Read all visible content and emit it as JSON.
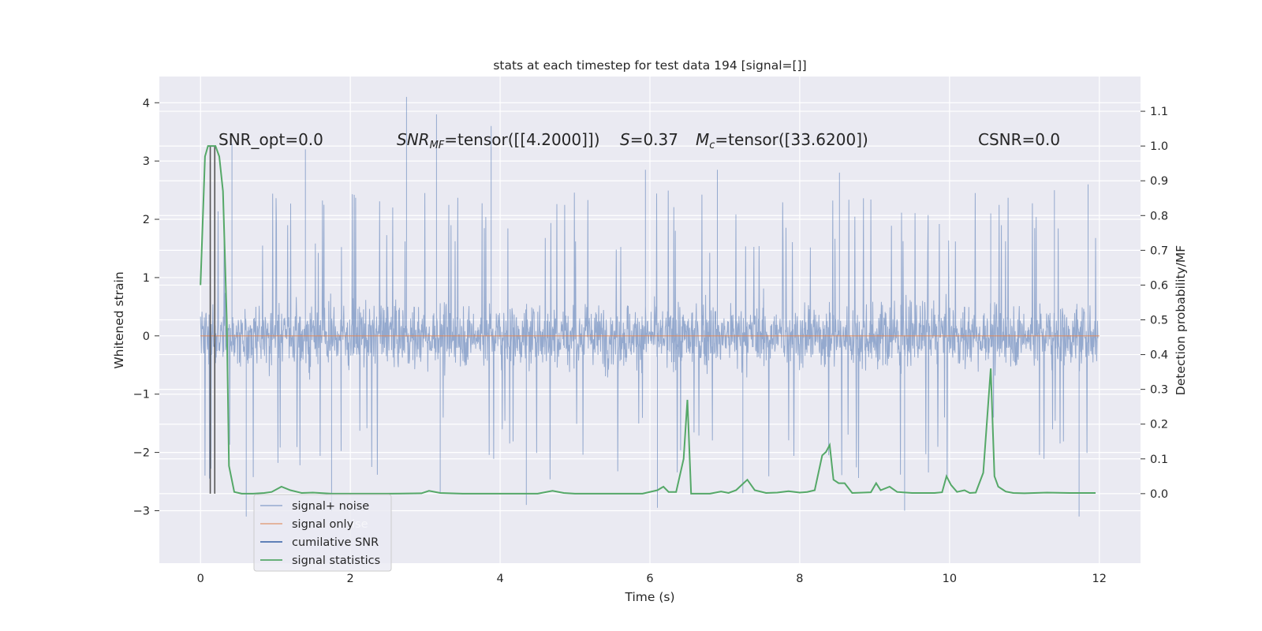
{
  "chart_data": {
    "type": "line",
    "title": "stats at each timestep for test data 194 [signal=[]]",
    "xlabel": "Time (s)",
    "ylabel": "Whitened strain",
    "ylabel_right": "Detection probability/MF",
    "xlim": [
      -0.55,
      12.55
    ],
    "ylim": [
      -3.9,
      4.45
    ],
    "ylim_right": [
      -0.2,
      1.2
    ],
    "grid": true,
    "x_ticks": [
      0,
      2,
      4,
      6,
      8,
      10,
      12
    ],
    "x_tick_labels": [
      "0",
      "2",
      "4",
      "6",
      "8",
      "10",
      "12"
    ],
    "y_ticks": [
      -3,
      -2,
      -1,
      0,
      1,
      2,
      3,
      4
    ],
    "y_tick_labels": [
      "−3",
      "−2",
      "−1",
      "0",
      "1",
      "2",
      "3",
      "4"
    ],
    "y_right_ticks": [
      0.0,
      0.1,
      0.2,
      0.3,
      0.4,
      0.5,
      0.6,
      0.7,
      0.8,
      0.9,
      1.0,
      1.1
    ],
    "y_right_tick_labels": [
      "0.0",
      "0.1",
      "0.2",
      "0.3",
      "0.4",
      "0.5",
      "0.6",
      "0.7",
      "0.8",
      "0.9",
      "1.0",
      "1.1"
    ],
    "colors": {
      "background": "#eaeaf2",
      "grid": "#ffffff",
      "noise": "#4c72b0",
      "signal_only": "#dd8452",
      "cumulative_snr": "#4c72b0",
      "statistics": "#55a868",
      "marker_lines": "#555555"
    },
    "annotations": {
      "snr_opt": "SNR_opt=0.0",
      "snr_mf_symbol": "SNR",
      "snr_mf_sub": "MF",
      "snr_mf_value": "=tensor([[4.2000]])",
      "s_symbol": "S",
      "s_value": "=0.37",
      "mc_symbol": "M",
      "mc_sub": "c",
      "mc_value": "=tensor([33.6200])",
      "csnr": "CSNR=0.0"
    },
    "legend": {
      "location": "lower left",
      "entries": [
        "signal+ noise",
        "signal only",
        "cumilative SNR",
        "signal statistics"
      ],
      "ghost_text": "ise"
    },
    "series": [
      {
        "name": "signal+ noise",
        "axis": "left",
        "x_range": [
          0,
          11.98
        ],
        "envelope_typical": [
          -1.4,
          1.5
        ],
        "spikes": [
          [
            0.42,
            3.3
          ],
          [
            0.61,
            -3.1
          ],
          [
            1.4,
            3.2
          ],
          [
            1.75,
            -3.0
          ],
          [
            2.75,
            4.1
          ],
          [
            3.15,
            3.8
          ],
          [
            3.2,
            -2.7
          ],
          [
            3.88,
            3.6
          ],
          [
            4.35,
            -2.9
          ],
          [
            5.94,
            2.85
          ],
          [
            6.1,
            -2.95
          ],
          [
            6.9,
            2.85
          ],
          [
            7.24,
            -2.7
          ],
          [
            8.53,
            2.8
          ],
          [
            9.4,
            -3.0
          ],
          [
            10.55,
            2.1
          ],
          [
            11.4,
            2.5
          ],
          [
            11.73,
            -3.1
          ],
          [
            11.85,
            2.6
          ]
        ]
      },
      {
        "name": "signal only",
        "axis": "left",
        "x": [
          0,
          12
        ],
        "y": [
          0,
          0
        ]
      },
      {
        "name": "signal statistics",
        "axis": "right",
        "x": [
          0.0,
          0.06,
          0.1,
          0.15,
          0.2,
          0.25,
          0.3,
          0.35,
          0.38,
          0.45,
          0.55,
          0.7,
          0.85,
          0.95,
          1.08,
          1.2,
          1.35,
          1.5,
          1.75,
          2.0,
          2.5,
          2.95,
          3.05,
          3.2,
          3.5,
          4.0,
          4.5,
          4.7,
          4.85,
          5.0,
          5.5,
          5.9,
          6.1,
          6.18,
          6.25,
          6.35,
          6.45,
          6.5,
          6.55,
          6.65,
          6.8,
          6.95,
          7.05,
          7.15,
          7.25,
          7.3,
          7.4,
          7.55,
          7.7,
          7.85,
          8.0,
          8.1,
          8.2,
          8.3,
          8.35,
          8.4,
          8.45,
          8.52,
          8.6,
          8.7,
          8.85,
          8.95,
          9.02,
          9.08,
          9.2,
          9.3,
          9.5,
          9.8,
          9.9,
          9.96,
          10.02,
          10.1,
          10.2,
          10.27,
          10.35,
          10.45,
          10.55,
          10.6,
          10.65,
          10.75,
          10.85,
          11.0,
          11.3,
          11.6,
          11.95
        ],
        "y": [
          0.6,
          0.97,
          1.0,
          1.0,
          1.0,
          0.97,
          0.87,
          0.5,
          0.08,
          0.005,
          0.0,
          0.0,
          0.002,
          0.005,
          0.02,
          0.01,
          0.002,
          0.003,
          0.0,
          0.0,
          0.0,
          0.001,
          0.008,
          0.002,
          0.0,
          0.0,
          0.0,
          0.008,
          0.002,
          0.0,
          0.0,
          0.0,
          0.01,
          0.02,
          0.005,
          0.005,
          0.1,
          0.27,
          0.0,
          0.0,
          0.0,
          0.006,
          0.002,
          0.01,
          0.03,
          0.04,
          0.01,
          0.002,
          0.003,
          0.007,
          0.003,
          0.005,
          0.01,
          0.11,
          0.12,
          0.14,
          0.04,
          0.03,
          0.03,
          0.002,
          0.003,
          0.004,
          0.03,
          0.01,
          0.02,
          0.005,
          0.002,
          0.002,
          0.004,
          0.05,
          0.025,
          0.005,
          0.01,
          0.002,
          0.003,
          0.06,
          0.36,
          0.05,
          0.02,
          0.006,
          0.002,
          0.001,
          0.003,
          0.002,
          0.002
        ]
      }
    ],
    "marker_lines": [
      {
        "x": 0.13,
        "y_top_right": 1.0,
        "y_bottom_right": -0.0
      },
      {
        "x": 0.19,
        "y_top_right": 1.0,
        "y_bottom_right": -0.0
      }
    ]
  }
}
